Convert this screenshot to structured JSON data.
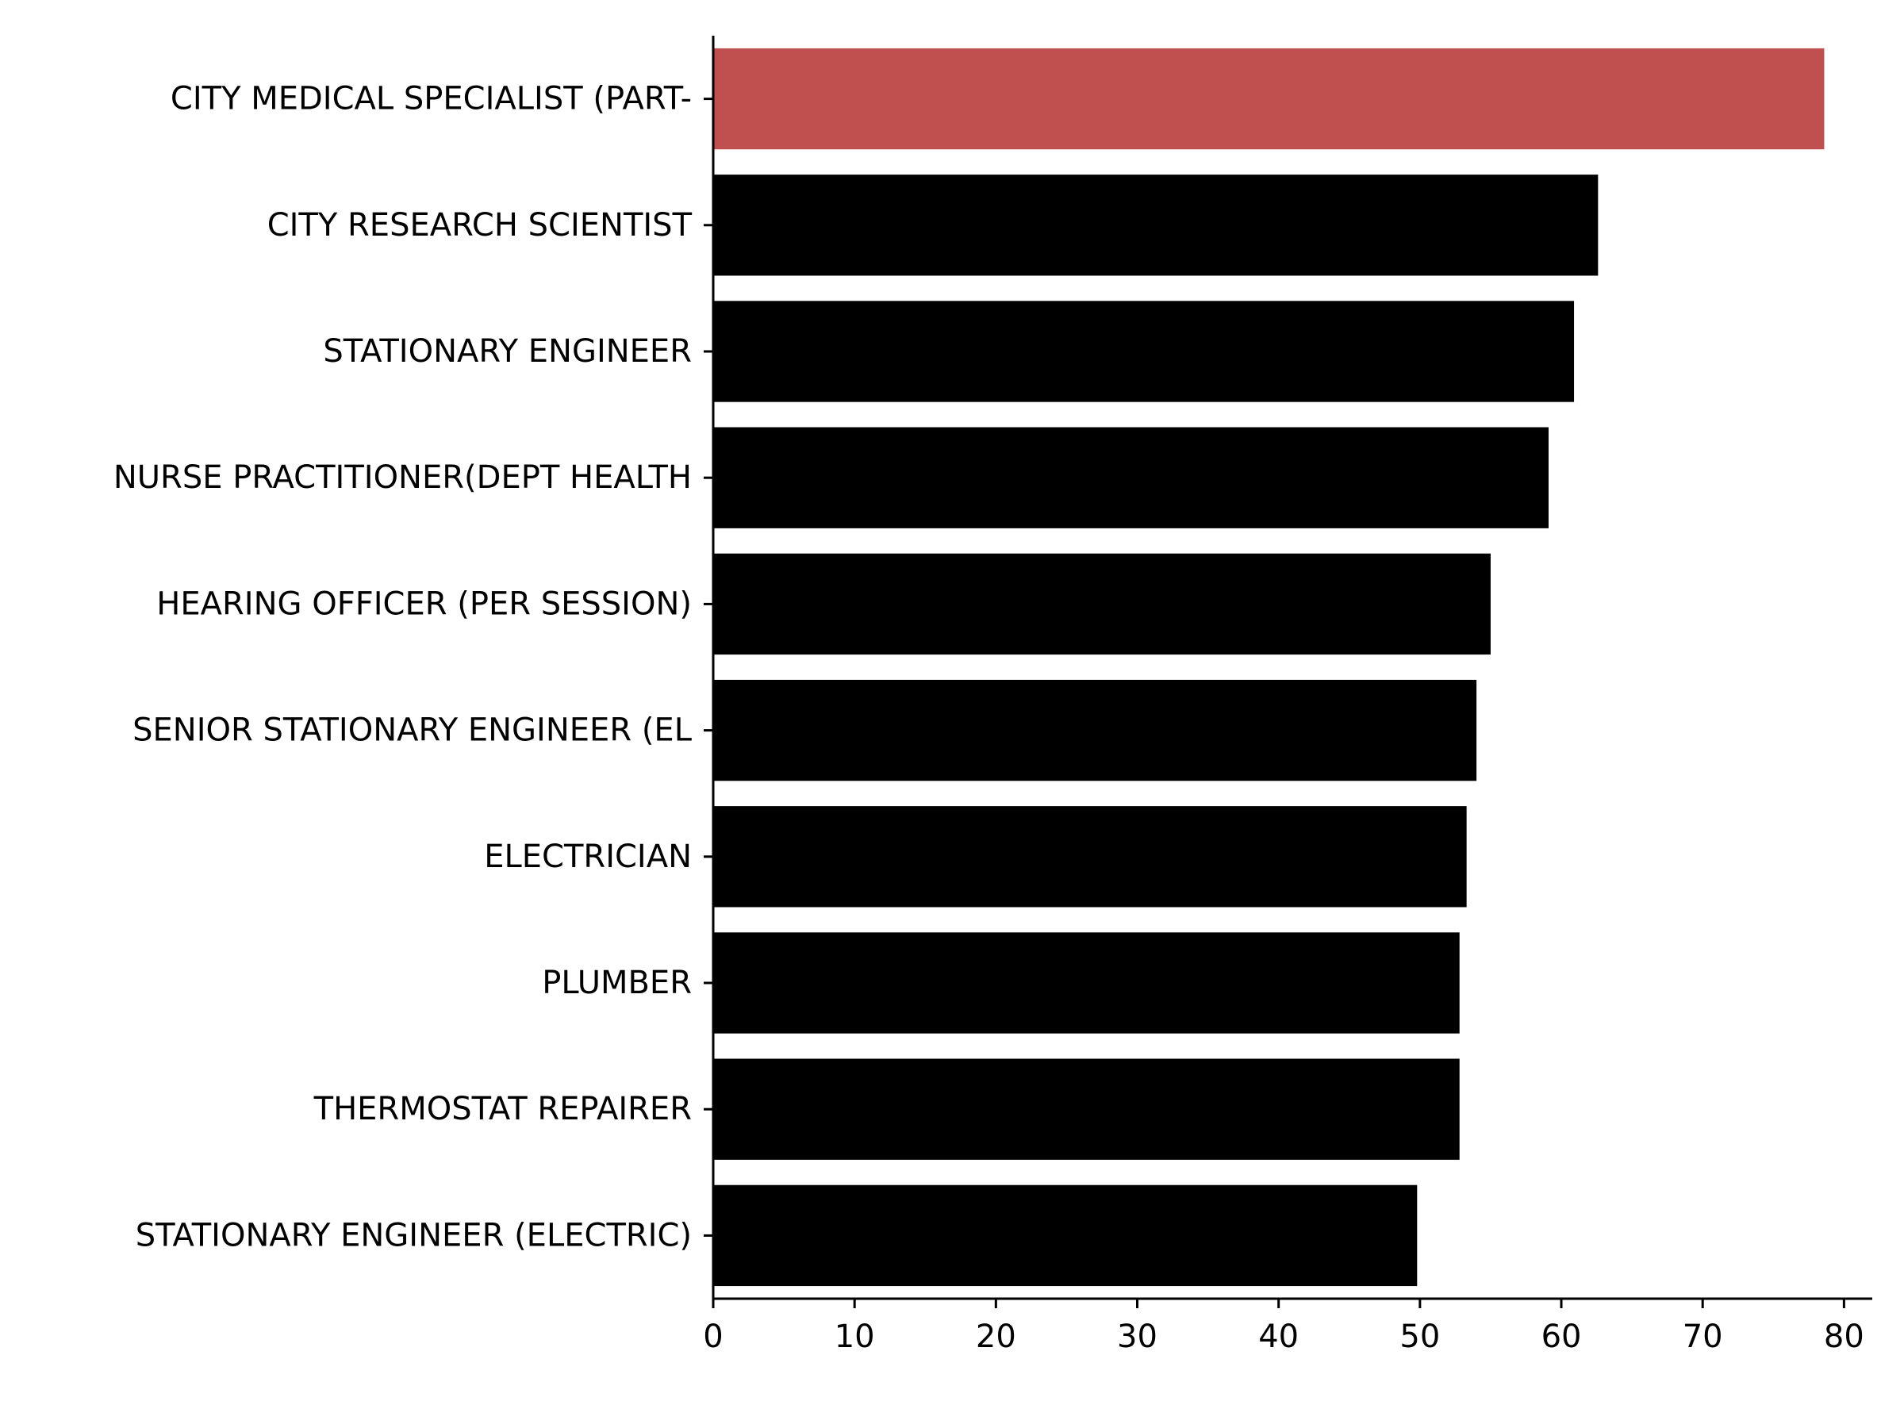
{
  "chart_data": {
    "type": "bar",
    "orientation": "horizontal",
    "title": "",
    "xlabel": "",
    "ylabel": "",
    "xlim": [
      0,
      82
    ],
    "xticks": [
      0,
      10,
      20,
      30,
      40,
      50,
      60,
      70,
      80
    ],
    "grid": false,
    "legend": "none",
    "categories": [
      "CITY MEDICAL SPECIALIST (PART-",
      "CITY RESEARCH SCIENTIST",
      "STATIONARY ENGINEER",
      "NURSE PRACTITIONER(DEPT HEALTH",
      "HEARING OFFICER (PER SESSION)",
      "SENIOR STATIONARY ENGINEER (EL",
      "ELECTRICIAN",
      "PLUMBER",
      "THERMOSTAT REPAIRER",
      "STATIONARY ENGINEER (ELECTRIC)"
    ],
    "values": [
      78.6,
      62.6,
      60.9,
      59.1,
      55.0,
      54.0,
      53.3,
      52.8,
      52.8,
      49.8
    ],
    "colors": {
      "highlight": "#c0504f",
      "default": "#000000"
    },
    "highlight_index": 0
  }
}
